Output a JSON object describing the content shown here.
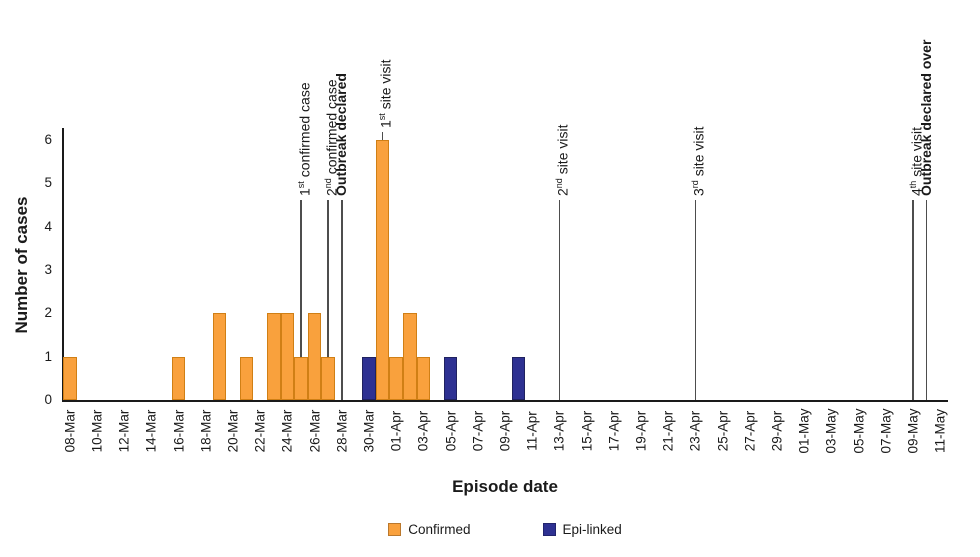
{
  "chart_data": {
    "type": "bar",
    "title": "",
    "xlabel": "Episode date",
    "ylabel": "Number of cases",
    "ylim": [
      0,
      6
    ],
    "yticks": [
      0,
      1,
      2,
      3,
      4,
      5,
      6
    ],
    "grid": false,
    "bar_interval": "1 day",
    "x_range": {
      "start": "08-Mar",
      "end": "11-May"
    },
    "x_tick_labels": [
      "08-Mar",
      "10-Mar",
      "12-Mar",
      "14-Mar",
      "16-Mar",
      "18-Mar",
      "20-Mar",
      "22-Mar",
      "24-Mar",
      "26-Mar",
      "28-Mar",
      "30-Mar",
      "01-Apr",
      "03-Apr",
      "05-Apr",
      "07-Apr",
      "09-Apr",
      "11-Apr",
      "13-Apr",
      "15-Apr",
      "17-Apr",
      "19-Apr",
      "21-Apr",
      "23-Apr",
      "25-Apr",
      "27-Apr",
      "29-Apr",
      "01-May",
      "03-May",
      "05-May",
      "07-May",
      "09-May",
      "11-May"
    ],
    "series": [
      {
        "name": "Confirmed",
        "color": "#F9A13D",
        "border_color": "#D07F15",
        "bars": [
          {
            "date": "08-Mar",
            "cases": 1
          },
          {
            "date": "16-Mar",
            "cases": 1
          },
          {
            "date": "19-Mar",
            "cases": 2
          },
          {
            "date": "21-Mar",
            "cases": 1
          },
          {
            "date": "23-Mar",
            "cases": 2
          },
          {
            "date": "24-Mar",
            "cases": 2
          },
          {
            "date": "25-Mar",
            "cases": 1
          },
          {
            "date": "26-Mar",
            "cases": 2
          },
          {
            "date": "27-Mar",
            "cases": 1
          },
          {
            "date": "31-Mar",
            "cases": 6
          },
          {
            "date": "01-Apr",
            "cases": 1
          },
          {
            "date": "02-Apr",
            "cases": 2
          },
          {
            "date": "03-Apr",
            "cases": 1
          }
        ]
      },
      {
        "name": "Epi-linked",
        "color": "#2E3192",
        "border_color": "#20225F",
        "bars": [
          {
            "date": "30-Mar",
            "cases": 1
          },
          {
            "date": "05-Apr",
            "cases": 1
          },
          {
            "date": "10-Apr",
            "cases": 1
          }
        ]
      }
    ],
    "annotations": [
      {
        "date": "25-Mar",
        "pre": "1",
        "sup": "st",
        "post": " confirmed case",
        "bold": false
      },
      {
        "date": "27-Mar",
        "pre": "2",
        "sup": "nd",
        "post": " confirmed case",
        "bold": false
      },
      {
        "date": "28-Mar",
        "pre": "Outbreak declared",
        "sup": "",
        "post": "",
        "bold": true
      },
      {
        "date": "31-Mar",
        "pre": "1",
        "sup": "st",
        "post": " site visit",
        "bold": false
      },
      {
        "date": "13-Apr",
        "pre": "2",
        "sup": "nd",
        "post": " site visit",
        "bold": false
      },
      {
        "date": "23-Apr",
        "pre": "3",
        "sup": "rd",
        "post": " site visit",
        "bold": false
      },
      {
        "date": "09-May",
        "pre": "4",
        "sup": "th",
        "post": " site visit",
        "bold": false
      },
      {
        "date": "10-May",
        "pre": "Outbreak declared over",
        "sup": "",
        "post": "",
        "bold": true
      }
    ],
    "annotation_line_color": "#4d4d4d",
    "legend_position": "bottom-center",
    "legend": [
      {
        "label": "Confirmed",
        "color": "#F9A13D"
      },
      {
        "label": "Epi-linked",
        "color": "#2E3192"
      }
    ]
  }
}
